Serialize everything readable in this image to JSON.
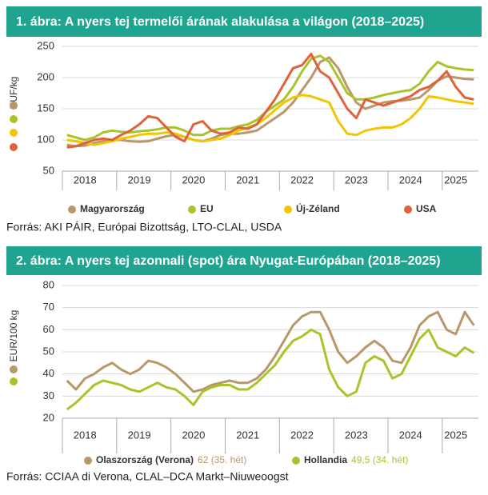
{
  "chart_data": [
    {
      "type": "line",
      "title": "1. ábra: A nyers tej termelői árának alakulása a világon (2018–2025)",
      "ylabel": "HUF/kg",
      "source": "Forrás: AKI PÁIR, Európai Bizottság, LTO-CLAL, USDA",
      "categories": [
        null,
        null,
        "2018",
        null,
        null,
        null,
        null,
        null,
        "2019",
        null,
        null,
        null,
        null,
        null,
        "2020",
        null,
        null,
        null,
        null,
        null,
        "2021",
        null,
        null,
        null,
        null,
        null,
        "2022",
        null,
        null,
        null,
        null,
        null,
        "2023",
        null,
        null,
        null,
        null,
        null,
        "2024",
        null,
        null,
        null,
        null,
        "2025",
        null,
        null
      ],
      "ylim": [
        50,
        250
      ],
      "yticks": [
        50,
        100,
        150,
        200,
        250
      ],
      "grid": true,
      "series": [
        {
          "name": "Magyarország",
          "color": "#b8976a",
          "values": [
            92,
            90,
            91,
            95,
            98,
            100,
            100,
            98,
            97,
            98,
            102,
            106,
            108,
            105,
            100,
            98,
            102,
            108,
            110,
            110,
            112,
            115,
            125,
            135,
            145,
            160,
            180,
            200,
            225,
            232,
            215,
            185,
            160,
            150,
            155,
            160,
            162,
            163,
            165,
            168,
            180,
            195,
            202,
            200,
            198,
            197
          ]
        },
        {
          "name": "EU",
          "color": "#a9c42b",
          "values": [
            108,
            104,
            100,
            104,
            112,
            115,
            113,
            112,
            114,
            115,
            117,
            120,
            120,
            115,
            108,
            108,
            115,
            118,
            118,
            122,
            125,
            132,
            145,
            155,
            165,
            185,
            210,
            230,
            235,
            225,
            200,
            175,
            165,
            165,
            168,
            172,
            175,
            178,
            180,
            190,
            210,
            225,
            218,
            215,
            213,
            212
          ]
        },
        {
          "name": "Új-Zéland",
          "color": "#f2c500",
          "values": [
            100,
            98,
            95,
            92,
            95,
            98,
            102,
            105,
            108,
            110,
            110,
            112,
            110,
            105,
            100,
            98,
            100,
            102,
            108,
            115,
            120,
            125,
            135,
            148,
            160,
            168,
            172,
            170,
            165,
            160,
            130,
            110,
            108,
            115,
            118,
            120,
            120,
            125,
            135,
            150,
            170,
            168,
            165,
            162,
            160,
            158
          ]
        },
        {
          "name": "USA",
          "color": "#e0623a",
          "values": [
            88,
            90,
            95,
            100,
            102,
            100,
            108,
            115,
            125,
            138,
            135,
            120,
            105,
            98,
            125,
            130,
            115,
            110,
            112,
            120,
            118,
            125,
            145,
            165,
            190,
            215,
            220,
            238,
            210,
            200,
            175,
            150,
            135,
            165,
            160,
            155,
            160,
            165,
            170,
            180,
            185,
            195,
            210,
            185,
            168,
            165
          ]
        }
      ]
    },
    {
      "type": "line",
      "title": "2. ábra: A nyers tej azonnali (spot) ára Nyugat-Európában (2018–2025)",
      "ylabel": "EUR/100 kg",
      "source": "Forrás: CCIAA di Verona, CLAL–DCA Markt–Niuweoogst",
      "categories": [
        null,
        null,
        "2018",
        null,
        null,
        null,
        null,
        null,
        "2019",
        null,
        null,
        null,
        null,
        null,
        "2020",
        null,
        null,
        null,
        null,
        null,
        "2021",
        null,
        null,
        null,
        null,
        null,
        "2022",
        null,
        null,
        null,
        null,
        null,
        "2023",
        null,
        null,
        null,
        null,
        null,
        "2024",
        null,
        null,
        null,
        null,
        "2025",
        null,
        null
      ],
      "ylim": [
        20,
        80
      ],
      "yticks": [
        20,
        30,
        40,
        50,
        60,
        70,
        80
      ],
      "grid": true,
      "series": [
        {
          "name": "Olaszország (Verona)",
          "note": "62 (35. hét)",
          "color": "#b8976a",
          "values": [
            37,
            33,
            38,
            40,
            43,
            45,
            42,
            40,
            42,
            46,
            45,
            43,
            40,
            36,
            32,
            33,
            35,
            36,
            37,
            36,
            36,
            38,
            42,
            48,
            55,
            62,
            66,
            68,
            68,
            60,
            50,
            45,
            48,
            52,
            55,
            52,
            46,
            45,
            52,
            62,
            66,
            68,
            60,
            58,
            68,
            62
          ]
        },
        {
          "name": "Hollandia",
          "note": "49,5 (34. hét)",
          "color": "#a9c42b",
          "values": [
            24,
            27,
            31,
            35,
            37,
            36,
            35,
            33,
            32,
            34,
            36,
            34,
            33,
            30,
            26,
            32,
            34,
            35,
            35,
            33,
            33,
            36,
            40,
            44,
            50,
            55,
            57,
            60,
            58,
            42,
            34,
            30,
            32,
            45,
            48,
            46,
            38,
            40,
            48,
            56,
            60,
            52,
            50,
            48,
            52,
            49.5
          ]
        }
      ]
    }
  ]
}
